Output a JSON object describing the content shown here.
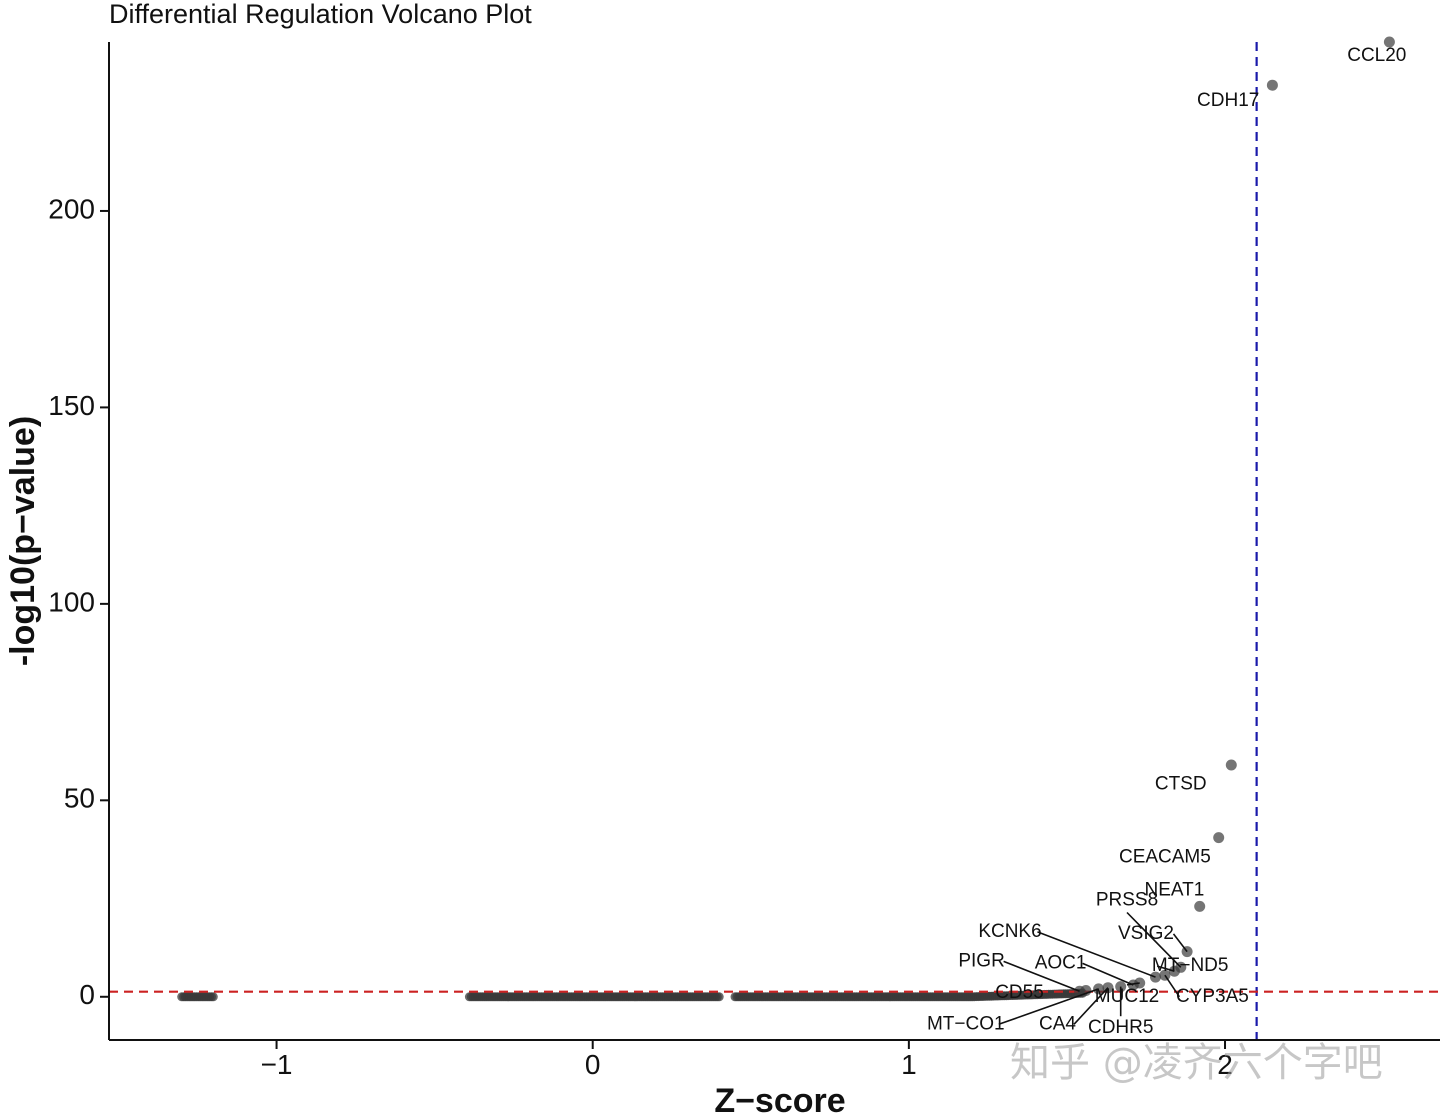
{
  "watermark": "知乎 @凌齐六个字吧",
  "chart_data": {
    "type": "scatter",
    "title": "Differential Regulation Volcano Plot",
    "xlabel": "Z−score",
    "ylabel": "-log10(p−value)",
    "xlim": [
      -1.53,
      2.68
    ],
    "ylim": [
      -11,
      243
    ],
    "xticks": [
      -1,
      0,
      1,
      2
    ],
    "xtick_labels": [
      "−1",
      "0",
      "1",
      "2"
    ],
    "yticks": [
      0,
      50,
      100,
      150,
      200
    ],
    "ytick_labels": [
      "0",
      "50",
      "100",
      "150",
      "200"
    ],
    "grid": false,
    "legend": "none",
    "thresholds": {
      "vertical_x": 2.1,
      "vertical_color": "#1a1aaa",
      "horizontal_y": 1.3,
      "horizontal_color": "#cc2222"
    },
    "point_color": "#3a3a3a",
    "points": [
      {
        "gene": "CCL20",
        "x": 2.52,
        "y": 243.0
      },
      {
        "gene": "CDH17",
        "x": 2.15,
        "y": 232.0
      },
      {
        "gene": "CTSD",
        "x": 2.02,
        "y": 59.0
      },
      {
        "gene": "CEACAM5",
        "x": 1.98,
        "y": 40.5
      },
      {
        "gene": "NEAT1",
        "x": 1.92,
        "y": 23.0
      },
      {
        "gene": "PRSS8",
        "x": 1.86,
        "y": 7.5
      },
      {
        "gene": "VSIG2",
        "x": 1.88,
        "y": 11.5
      },
      {
        "gene": "MT−ND5",
        "x": 1.84,
        "y": 6.5
      },
      {
        "gene": "CYP3A5",
        "x": 1.81,
        "y": 5.5
      },
      {
        "gene": "KCNK6",
        "x": 1.78,
        "y": 5.0
      },
      {
        "gene": "MUC12",
        "x": 1.73,
        "y": 3.5
      },
      {
        "gene": "AOC1",
        "x": 1.71,
        "y": 3.0
      },
      {
        "gene": "CDHR5",
        "x": 1.67,
        "y": 2.6
      },
      {
        "gene": "CA4",
        "x": 1.63,
        "y": 2.3
      },
      {
        "gene": "MT−CO1",
        "x": 1.6,
        "y": 2.0
      },
      {
        "gene": "CD55",
        "x": 1.56,
        "y": 1.6
      },
      {
        "gene": "PIGR",
        "x": 1.54,
        "y": 1.4
      }
    ],
    "background_groups": [
      {
        "x_start": -1.3,
        "x_end": -1.2
      },
      {
        "x_start": -0.39,
        "x_end": 0.4
      },
      {
        "x_start": 0.45,
        "x_end": 1.55
      }
    ],
    "labels": [
      {
        "gene": "CCL20",
        "text_x": 2.48,
        "text_y": 239.5,
        "leader": false
      },
      {
        "gene": "CDH17",
        "text_x": 2.01,
        "text_y": 228.0,
        "leader": false
      },
      {
        "gene": "CTSD",
        "text_x": 1.86,
        "text_y": 54.0,
        "leader": false
      },
      {
        "gene": "CEACAM5",
        "text_x": 1.81,
        "text_y": 35.5,
        "leader": false
      },
      {
        "gene": "NEAT1",
        "text_x": 1.84,
        "text_y": 27.0,
        "leader": false
      },
      {
        "gene": "PRSS8",
        "text_x": 1.69,
        "text_y": 24.5,
        "leader": true
      },
      {
        "gene": "VSIG2",
        "text_x": 1.75,
        "text_y": 16.0,
        "leader": true
      },
      {
        "gene": "MT−ND5",
        "text_x": 1.89,
        "text_y": 7.8,
        "leader": true
      },
      {
        "gene": "CYP3A5",
        "text_x": 1.96,
        "text_y": 0.0,
        "leader": true
      },
      {
        "gene": "KCNK6",
        "text_x": 1.32,
        "text_y": 16.5,
        "leader": true
      },
      {
        "gene": "MUC12",
        "text_x": 1.69,
        "text_y": 0.0,
        "leader": true
      },
      {
        "gene": "AOC1",
        "text_x": 1.48,
        "text_y": 8.5,
        "leader": true
      },
      {
        "gene": "CDHR5",
        "text_x": 1.67,
        "text_y": -8.0,
        "leader": true
      },
      {
        "gene": "CA4",
        "text_x": 1.47,
        "text_y": -7.0,
        "leader": true
      },
      {
        "gene": "MT−CO1",
        "text_x": 1.18,
        "text_y": -7.0,
        "leader": true
      },
      {
        "gene": "CD55",
        "text_x": 1.35,
        "text_y": 1.0,
        "leader": false
      },
      {
        "gene": "PIGR",
        "text_x": 1.23,
        "text_y": 9.0,
        "leader": true
      }
    ]
  }
}
